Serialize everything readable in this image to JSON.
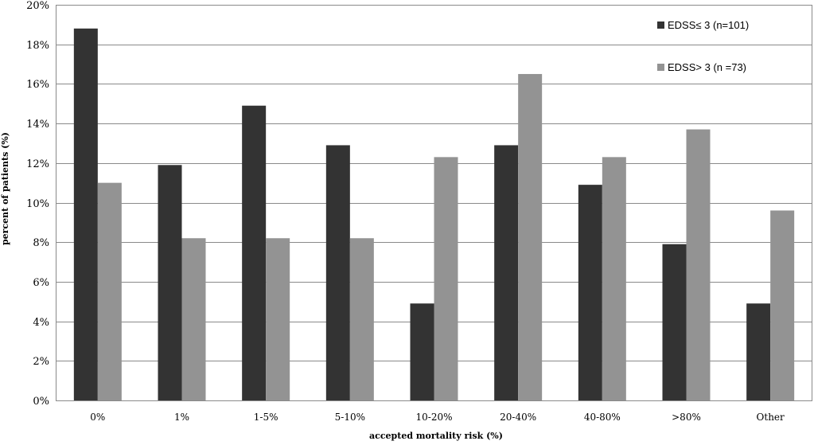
{
  "chart_data": {
    "type": "bar",
    "title": "",
    "xlabel": "accepted mortality risk (%)",
    "ylabel": "percent of patients (%)",
    "ylim": [
      0,
      20
    ],
    "yticks": [
      "0%",
      "2%",
      "4%",
      "6%",
      "8%",
      "10%",
      "12%",
      "14%",
      "16%",
      "18%",
      "20%"
    ],
    "grid": true,
    "legend_position": "top-right",
    "categories": [
      "0%",
      "1%",
      "1-5%",
      "5-10%",
      "10-20%",
      "20-40%",
      "40-80%",
      ">80%",
      "Other"
    ],
    "series": [
      {
        "name": "EDSS≤ 3  (n=101)",
        "color": "#333333",
        "values": [
          18.8,
          11.9,
          14.9,
          12.9,
          4.9,
          12.9,
          10.9,
          7.9,
          4.9
        ]
      },
      {
        "name": "EDSS> 3  (n =73)",
        "color": "#939393",
        "values": [
          11.0,
          8.2,
          8.2,
          8.2,
          12.3,
          16.5,
          12.3,
          13.7,
          9.6
        ]
      }
    ]
  }
}
